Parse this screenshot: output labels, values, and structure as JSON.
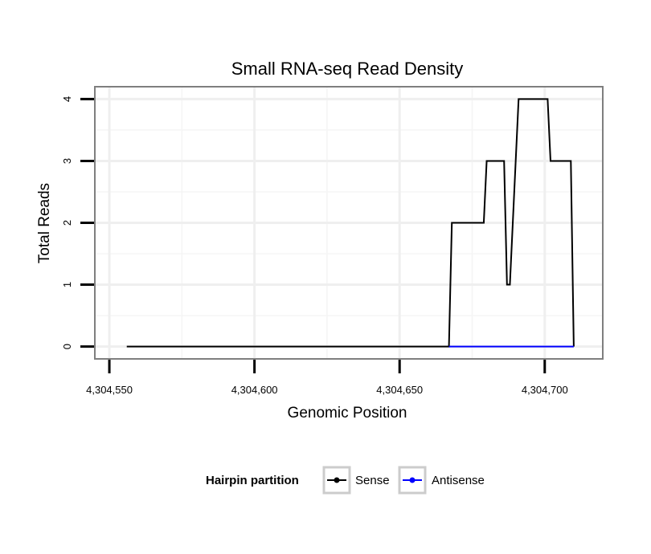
{
  "chart_data": {
    "type": "line",
    "title": "Small RNA-seq Read Density",
    "xlabel": "Genomic Position",
    "ylabel": "Total Reads",
    "xlim": [
      4304545,
      4304720
    ],
    "ylim": [
      -0.2,
      4.2
    ],
    "x_ticks": [
      4304550,
      4304600,
      4304650,
      4304700
    ],
    "x_tick_labels": [
      "4,304,550",
      "4,304,600",
      "4,304,650",
      "4,304,700"
    ],
    "y_ticks": [
      0,
      1,
      2,
      3,
      4
    ],
    "y_tick_labels": [
      "0",
      "1",
      "2",
      "3",
      "4"
    ],
    "grid": true,
    "legend": {
      "title": "Hairpin partition",
      "placement": "bottom"
    },
    "series": [
      {
        "name": "Sense",
        "color": "#000000",
        "points": [
          [
            4304556,
            0
          ],
          [
            4304667,
            0
          ],
          [
            4304668,
            2
          ],
          [
            4304679,
            2
          ],
          [
            4304680,
            3
          ],
          [
            4304686,
            3
          ],
          [
            4304687,
            1
          ],
          [
            4304688,
            1
          ],
          [
            4304691,
            4
          ],
          [
            4304701,
            4
          ],
          [
            4304702,
            3
          ],
          [
            4304709,
            3
          ],
          [
            4304710,
            0
          ]
        ]
      },
      {
        "name": "Antisense",
        "color": "#0000ff",
        "points": [
          [
            4304667,
            0
          ],
          [
            4304710,
            0
          ]
        ]
      }
    ]
  }
}
